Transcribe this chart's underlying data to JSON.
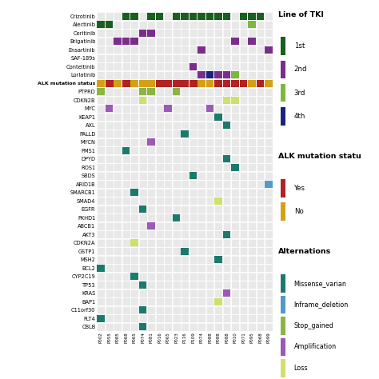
{
  "sample_labels": [
    "P002",
    "P055",
    "P085",
    "P068",
    "P065",
    "P074",
    "P081",
    "P016",
    "P065",
    "P023",
    "P116",
    "P109",
    "P074",
    "P088",
    "P088",
    "P088",
    "P010",
    "P071",
    "P095",
    "P068",
    "P099"
  ],
  "drugs": [
    "Crizotinib",
    "Alectinib",
    "Ceritinib",
    "Brigatinib",
    "Ensartinib",
    "SAF-189s",
    "Conteltinib",
    "Lorlatinib"
  ],
  "genes": [
    "PTPRD",
    "CDKN2B",
    "MYC",
    "KEAP1",
    "AXL",
    "PALLD",
    "MYCN",
    "PMS1",
    "DPYD",
    "ROS1",
    "SBDS",
    "ARID1B",
    "SMARCB1",
    "SMAD4",
    "EGFR",
    "PKHD1",
    "ABCB1",
    "AKT3",
    "CDKN2A",
    "GSTP1",
    "MSH2",
    "BCL2",
    "CYP2C19",
    "TP53",
    "KRAS",
    "BAP1",
    "C11orf30",
    "FLT4",
    "CBLB"
  ],
  "drug_data": {
    "Crizotinib": [
      0,
      0,
      0,
      1,
      1,
      0,
      1,
      1,
      0,
      1,
      1,
      1,
      1,
      1,
      1,
      1,
      0,
      1,
      1,
      1,
      0
    ],
    "Alectinib": [
      1,
      1,
      0,
      0,
      0,
      0,
      0,
      0,
      0,
      0,
      0,
      0,
      0,
      0,
      0,
      0,
      0,
      0,
      3,
      0,
      0
    ],
    "Ceritinib": [
      0,
      0,
      0,
      0,
      0,
      2,
      2,
      0,
      0,
      0,
      0,
      0,
      0,
      0,
      0,
      0,
      0,
      0,
      0,
      0,
      0
    ],
    "Brigatinib": [
      0,
      0,
      2,
      2,
      2,
      0,
      0,
      0,
      0,
      0,
      0,
      0,
      0,
      0,
      0,
      0,
      2,
      0,
      2,
      0,
      0
    ],
    "Ensartinib": [
      0,
      0,
      0,
      0,
      0,
      0,
      0,
      0,
      0,
      0,
      0,
      0,
      2,
      0,
      0,
      0,
      0,
      0,
      0,
      0,
      2
    ],
    "SAF-189s": [
      0,
      0,
      0,
      0,
      0,
      0,
      0,
      0,
      0,
      0,
      0,
      0,
      0,
      0,
      0,
      0,
      0,
      0,
      0,
      0,
      0
    ],
    "Conteltinib": [
      0,
      0,
      0,
      0,
      0,
      0,
      0,
      0,
      0,
      0,
      0,
      2,
      0,
      0,
      0,
      0,
      0,
      0,
      0,
      0,
      0
    ],
    "Lorlatinib": [
      0,
      0,
      0,
      0,
      0,
      0,
      0,
      0,
      0,
      0,
      0,
      0,
      2,
      4,
      2,
      2,
      3,
      0,
      0,
      0,
      0
    ]
  },
  "alk_status": [
    2,
    1,
    2,
    1,
    2,
    0,
    2,
    1,
    1,
    1,
    1,
    1,
    0,
    2,
    1,
    1,
    1,
    1,
    2,
    1,
    0
  ],
  "gene_data": {
    "PTPRD": [
      3,
      0,
      0,
      0,
      0,
      3,
      3,
      0,
      0,
      3,
      0,
      0,
      0,
      0,
      0,
      0,
      0,
      0,
      0,
      0,
      0
    ],
    "CDKN2B": [
      0,
      0,
      0,
      0,
      0,
      5,
      0,
      0,
      0,
      0,
      0,
      0,
      0,
      0,
      0,
      5,
      5,
      0,
      0,
      0,
      0
    ],
    "MYC": [
      0,
      4,
      0,
      0,
      0,
      0,
      0,
      0,
      4,
      0,
      0,
      0,
      0,
      4,
      0,
      0,
      0,
      0,
      0,
      0,
      0
    ],
    "KEAP1": [
      0,
      0,
      0,
      0,
      0,
      0,
      0,
      0,
      0,
      0,
      0,
      0,
      0,
      0,
      1,
      0,
      0,
      0,
      0,
      0,
      0
    ],
    "AXL": [
      0,
      0,
      0,
      0,
      0,
      0,
      0,
      0,
      0,
      0,
      0,
      0,
      0,
      0,
      0,
      1,
      0,
      0,
      0,
      0,
      0
    ],
    "PALLD": [
      0,
      0,
      0,
      0,
      0,
      0,
      0,
      0,
      0,
      0,
      1,
      0,
      0,
      0,
      0,
      0,
      0,
      0,
      0,
      0,
      0
    ],
    "MYCN": [
      0,
      0,
      0,
      0,
      0,
      0,
      4,
      0,
      0,
      0,
      0,
      0,
      0,
      0,
      0,
      0,
      0,
      0,
      0,
      0,
      0
    ],
    "PMS1": [
      0,
      0,
      0,
      1,
      0,
      0,
      0,
      0,
      0,
      0,
      0,
      0,
      0,
      0,
      0,
      0,
      0,
      0,
      0,
      0,
      0
    ],
    "DPYD": [
      0,
      0,
      0,
      0,
      0,
      0,
      0,
      0,
      0,
      0,
      0,
      0,
      0,
      0,
      0,
      1,
      0,
      0,
      0,
      0,
      0
    ],
    "ROS1": [
      0,
      0,
      0,
      0,
      0,
      0,
      0,
      0,
      0,
      0,
      0,
      0,
      0,
      0,
      0,
      0,
      1,
      0,
      0,
      0,
      0
    ],
    "SBDS": [
      0,
      0,
      0,
      0,
      0,
      0,
      0,
      0,
      0,
      0,
      0,
      1,
      0,
      0,
      0,
      0,
      0,
      0,
      0,
      0,
      0
    ],
    "ARID1B": [
      0,
      0,
      0,
      0,
      0,
      0,
      0,
      0,
      0,
      0,
      0,
      0,
      0,
      0,
      0,
      0,
      0,
      0,
      0,
      0,
      2
    ],
    "SMARCB1": [
      0,
      0,
      0,
      0,
      1,
      0,
      0,
      0,
      0,
      0,
      0,
      0,
      0,
      0,
      0,
      0,
      0,
      0,
      0,
      0,
      0
    ],
    "SMAD4": [
      0,
      0,
      0,
      0,
      0,
      0,
      0,
      0,
      0,
      0,
      0,
      0,
      0,
      0,
      5,
      0,
      0,
      0,
      0,
      0,
      0
    ],
    "EGFR": [
      0,
      0,
      0,
      0,
      0,
      1,
      0,
      0,
      0,
      0,
      0,
      0,
      0,
      0,
      0,
      0,
      0,
      0,
      0,
      0,
      0
    ],
    "PKHD1": [
      0,
      0,
      0,
      0,
      0,
      0,
      0,
      0,
      0,
      1,
      0,
      0,
      0,
      0,
      0,
      0,
      0,
      0,
      0,
      0,
      0
    ],
    "ABCB1": [
      0,
      0,
      0,
      0,
      0,
      0,
      4,
      0,
      0,
      0,
      0,
      0,
      0,
      0,
      0,
      0,
      0,
      0,
      0,
      0,
      0
    ],
    "AKT3": [
      0,
      0,
      0,
      0,
      0,
      0,
      0,
      0,
      0,
      0,
      0,
      0,
      0,
      0,
      0,
      1,
      0,
      0,
      0,
      0,
      0
    ],
    "CDKN2A": [
      0,
      0,
      0,
      0,
      5,
      0,
      0,
      0,
      0,
      0,
      0,
      0,
      0,
      0,
      0,
      0,
      0,
      0,
      0,
      0,
      0
    ],
    "GSTP1": [
      0,
      0,
      0,
      0,
      0,
      0,
      0,
      0,
      0,
      0,
      1,
      0,
      0,
      0,
      0,
      0,
      0,
      0,
      0,
      0,
      0
    ],
    "MSH2": [
      0,
      0,
      0,
      0,
      0,
      0,
      0,
      0,
      0,
      0,
      0,
      0,
      0,
      0,
      1,
      0,
      0,
      0,
      0,
      0,
      0
    ],
    "BCL2": [
      1,
      0,
      0,
      0,
      0,
      0,
      0,
      0,
      0,
      0,
      0,
      0,
      0,
      0,
      0,
      0,
      0,
      0,
      0,
      0,
      0
    ],
    "CYP2C19": [
      0,
      0,
      0,
      0,
      1,
      0,
      0,
      0,
      0,
      0,
      0,
      0,
      0,
      0,
      0,
      0,
      0,
      0,
      0,
      0,
      0
    ],
    "TP53": [
      0,
      0,
      0,
      0,
      0,
      1,
      0,
      0,
      0,
      0,
      0,
      0,
      0,
      0,
      0,
      0,
      0,
      0,
      0,
      0,
      0
    ],
    "KRAS": [
      0,
      0,
      0,
      0,
      0,
      0,
      0,
      0,
      0,
      0,
      0,
      0,
      0,
      0,
      0,
      4,
      0,
      0,
      0,
      0,
      0
    ],
    "BAP1": [
      0,
      0,
      0,
      0,
      0,
      0,
      0,
      0,
      0,
      0,
      0,
      0,
      0,
      0,
      5,
      0,
      0,
      0,
      0,
      0,
      0
    ],
    "C11orf30": [
      0,
      0,
      0,
      0,
      0,
      1,
      0,
      0,
      0,
      0,
      0,
      0,
      0,
      0,
      0,
      0,
      0,
      0,
      0,
      0,
      0
    ],
    "FLT4": [
      1,
      0,
      0,
      0,
      0,
      0,
      0,
      0,
      0,
      0,
      0,
      0,
      0,
      0,
      0,
      0,
      0,
      0,
      0,
      0,
      0
    ],
    "CBLB": [
      0,
      0,
      0,
      0,
      0,
      1,
      0,
      0,
      0,
      0,
      0,
      0,
      0,
      0,
      0,
      0,
      0,
      0,
      0,
      0,
      0
    ]
  },
  "tki_colors": {
    "0": "#d0d0d0",
    "1": "#1a5e20",
    "2": "#7b2d8b",
    "3": "#7db83e",
    "4": "#1a237e"
  },
  "alt_colors": {
    "1": "#1b7a6e",
    "2": "#5499c7",
    "3": "#8ab545",
    "4": "#9c59b6",
    "5": "#cfe06b"
  },
  "alk_colors": {
    "0": "#d4a017",
    "1": "#b22222",
    "2": "#d4a017"
  },
  "cell_color": "#e8e8e8",
  "bg_color": "#f5f5f5",
  "alk_yes_color": "#b22222",
  "alk_no_color": "#d4a017"
}
